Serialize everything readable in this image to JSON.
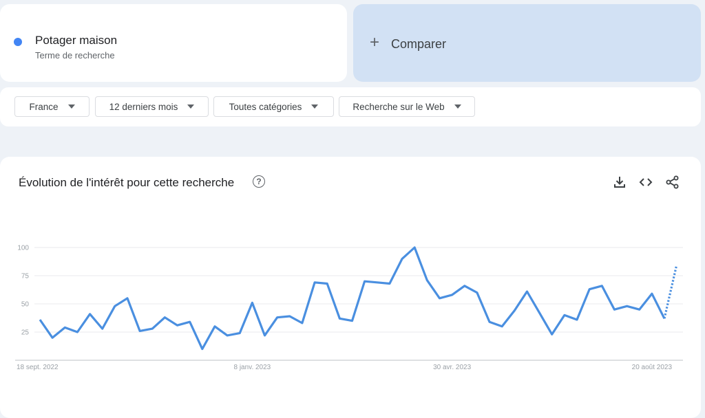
{
  "term": {
    "name": "Potager maison",
    "subtitle": "Terme de recherche",
    "color": "#4285f4"
  },
  "compare": {
    "icon": "plus-icon",
    "label": "Comparer"
  },
  "filters": [
    {
      "label": "France"
    },
    {
      "label": "12 derniers mois"
    },
    {
      "label": "Toutes catégories"
    },
    {
      "label": "Recherche sur le Web"
    }
  ],
  "chart_card": {
    "title": "Évolution de l'intérêt pour cette recherche",
    "icons": [
      "help-icon",
      "download-icon",
      "embed-code-icon",
      "share-icon"
    ]
  },
  "chart_data": {
    "type": "line",
    "title": "",
    "xlabel": "",
    "ylabel": "",
    "ylim": [
      0,
      100
    ],
    "yticks": [
      25,
      50,
      75,
      100
    ],
    "x_tick_labels": [
      "18 sept. 2022",
      "8 janv. 2023",
      "30 avr. 2023",
      "20 août 2023"
    ],
    "grid": true,
    "series": [
      {
        "color": "#4a8fe0",
        "values": [
          36,
          20,
          29,
          25,
          41,
          28,
          48,
          55,
          26,
          28,
          38,
          31,
          34,
          10,
          30,
          22,
          24,
          51,
          22,
          38,
          39,
          33,
          69,
          68,
          37,
          35,
          70,
          69,
          68,
          90,
          100,
          71,
          55,
          58,
          66,
          60,
          34,
          30,
          44,
          61,
          42,
          23,
          40,
          36,
          63,
          66,
          45,
          48,
          45,
          59,
          37
        ],
        "partial_values": [
          37,
          83
        ]
      }
    ]
  }
}
